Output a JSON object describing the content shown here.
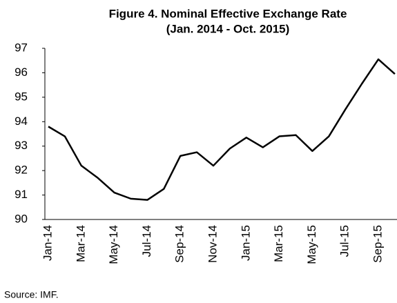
{
  "chart_data": {
    "type": "line",
    "title": "Figure 4. Nominal Effective Exchange Rate",
    "subtitle": "(Jan. 2014 - Oct. 2015)",
    "source": "Source: IMF.",
    "categories": [
      "Jan-14",
      null,
      "Mar-14",
      null,
      "May-14",
      null,
      "Jul-14",
      null,
      "Sep-14",
      null,
      "Nov-14",
      null,
      "Jan-15",
      null,
      "Mar-15",
      null,
      "May-15",
      null,
      "Jul-15",
      null,
      "Sep-15",
      null
    ],
    "values": [
      93.8,
      93.4,
      92.2,
      91.7,
      91.1,
      90.85,
      90.8,
      91.25,
      92.6,
      92.75,
      92.2,
      92.9,
      93.35,
      92.95,
      93.4,
      93.45,
      92.8,
      93.4,
      94.5,
      95.55,
      96.55,
      95.95
    ],
    "color": "#000000",
    "ylim": [
      90,
      97
    ],
    "yticks": [
      90,
      91,
      92,
      93,
      94,
      95,
      96,
      97
    ],
    "grid": false
  }
}
